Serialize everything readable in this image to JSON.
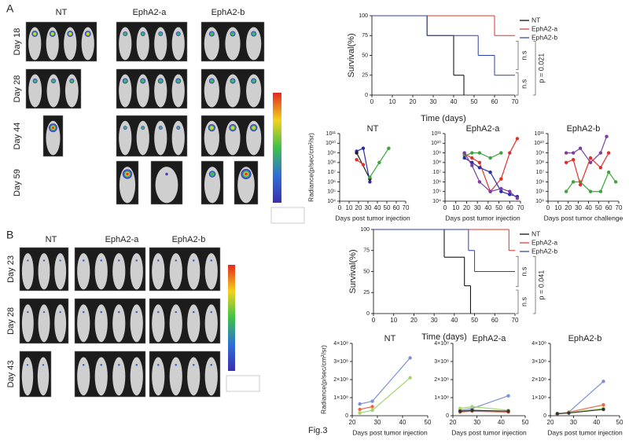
{
  "figure_label": "Fig.3",
  "panel_a": {
    "label": "A",
    "groups": [
      "NT",
      "EphA2-a",
      "EphA2-b"
    ],
    "days": [
      "Day 18",
      "Day 28",
      "Day 44",
      "Day 59"
    ],
    "survival": {
      "type": "step",
      "ylabel": "Survival(%)",
      "xlabel": "Time (days)",
      "xlim": [
        0,
        70
      ],
      "xticks": [
        0,
        10,
        20,
        30,
        40,
        50,
        60,
        70
      ],
      "ylim": [
        0,
        100
      ],
      "yticks": [
        0,
        25,
        50,
        75,
        100
      ],
      "legend": "upper right",
      "series": [
        {
          "name": "NT",
          "color": "#000000",
          "x": [
            0,
            27,
            40,
            45
          ],
          "values": [
            100,
            75,
            25,
            0
          ]
        },
        {
          "name": "EphA2-a",
          "color": "#e0302a",
          "x": [
            0,
            60,
            70
          ],
          "values": [
            100,
            75,
            75
          ]
        },
        {
          "name": "EphA2-b",
          "color": "#2b3fa6",
          "x": [
            0,
            27,
            52,
            60,
            70
          ],
          "values": [
            100,
            75,
            50,
            25,
            25
          ]
        }
      ],
      "annotations": [
        "n.s",
        "n.s",
        "p = 0.021"
      ]
    },
    "radiance": [
      {
        "type": "line",
        "title": "NT",
        "ylabel": "Radiance(p/sec/cm²/sr)",
        "xlabel": "Days post  tumor  injection",
        "log_y": true,
        "xlim": [
          0,
          70
        ],
        "xticks": [
          0,
          10,
          20,
          30,
          40,
          50,
          60,
          70
        ],
        "ylim": [
          10000,
          100000000000
        ],
        "yticks": [
          {
            "value": 10000,
            "label": "10⁴"
          },
          {
            "value": 100000,
            "label": "10⁵"
          },
          {
            "value": 1000000,
            "label": "10⁶"
          },
          {
            "value": 10000000,
            "label": "10⁷"
          },
          {
            "value": 100000000,
            "label": "10⁸"
          },
          {
            "value": 1000000000,
            "label": "10⁹"
          },
          {
            "value": 10000000000,
            "label": "10¹⁰"
          },
          {
            "value": 100000000000,
            "label": "10¹¹"
          }
        ],
        "series": [
          {
            "color": "#2c2ca8",
            "x": [
              18,
              25,
              32
            ],
            "values": [
              1500000000,
              3000000000,
              1000000
            ]
          },
          {
            "color": "#222222",
            "x": [
              18,
              32
            ],
            "values": [
              1000000000,
              2000000
            ]
          },
          {
            "color": "#e0302a",
            "x": [
              18,
              25
            ],
            "values": [
              200000000,
              60000000
            ]
          },
          {
            "color": "#3aa53a",
            "x": [
              32,
              42,
              52
            ],
            "values": [
              3000000,
              100000000,
              3000000000
            ]
          }
        ]
      },
      {
        "type": "line",
        "title": "EphA2-a",
        "xlabel": "Days post  tumor  injection",
        "log_y": true,
        "xlim": [
          0,
          70
        ],
        "xticks": [
          0,
          10,
          20,
          30,
          40,
          50,
          60,
          70
        ],
        "ylim": [
          10000,
          100000000000
        ],
        "yticks": [
          {
            "value": 10000,
            "label": "10⁴"
          },
          {
            "value": 100000,
            "label": "10⁵"
          },
          {
            "value": 1000000,
            "label": "10⁶"
          },
          {
            "value": 10000000,
            "label": "10⁷"
          },
          {
            "value": 100000000,
            "label": "10⁸"
          },
          {
            "value": 1000000000,
            "label": "10⁹"
          },
          {
            "value": 10000000000,
            "label": "10¹⁰"
          },
          {
            "value": 100000000000,
            "label": "10¹¹"
          }
        ],
        "series": [
          {
            "color": "#e0302a",
            "x": [
              18,
              25,
              32,
              42,
              52,
              60,
              67
            ],
            "values": [
              800000000,
              300000000,
              100000000,
              100000,
              2000000,
              1000000000,
              30000000000
            ]
          },
          {
            "color": "#3aa53a",
            "x": [
              18,
              25,
              32,
              42,
              52
            ],
            "values": [
              500000000,
              1000000000,
              1000000000,
              300000000,
              1000000000
            ]
          },
          {
            "color": "#2c2ca8",
            "x": [
              18,
              25,
              32,
              42,
              52,
              60,
              67
            ],
            "values": [
              300000000,
              100000000,
              30000000,
              10000000,
              100000,
              50000,
              30000
            ]
          },
          {
            "color": "#7b3fa0",
            "x": [
              18,
              25,
              32,
              42,
              52,
              60,
              67
            ],
            "values": [
              1000000000,
              50000000,
              1000000,
              100000,
              200000,
              100000,
              20000
            ]
          }
        ]
      },
      {
        "type": "line",
        "title": "EphA2-b",
        "xlabel": "Days post tumor challenge",
        "log_y": true,
        "xlim": [
          0,
          70
        ],
        "xticks": [
          0,
          10,
          20,
          30,
          40,
          50,
          60,
          70
        ],
        "ylim": [
          10000,
          100000000000
        ],
        "yticks": [
          {
            "value": 10000,
            "label": "10⁴"
          },
          {
            "value": 100000,
            "label": "10⁵"
          },
          {
            "value": 1000000,
            "label": "10⁶"
          },
          {
            "value": 10000000,
            "label": "10⁷"
          },
          {
            "value": 100000000,
            "label": "10⁸"
          },
          {
            "value": 1000000000,
            "label": "10⁹"
          },
          {
            "value": 10000000000,
            "label": "10¹⁰"
          },
          {
            "value": 100000000000,
            "label": "10¹¹"
          }
        ],
        "series": [
          {
            "color": "#7b3fa0",
            "x": [
              18,
              25,
              32,
              42,
              52,
              58
            ],
            "values": [
              1000000000,
              1000000000,
              3000000000,
              100000000,
              1000000000,
              50000000000
            ]
          },
          {
            "color": "#3aa53a",
            "x": [
              18,
              25,
              32,
              42,
              52,
              60,
              67
            ],
            "values": [
              100000,
              1000000,
              1000000,
              100000,
              100000,
              10000000,
              1000000
            ]
          },
          {
            "color": "#e0302a",
            "x": [
              18,
              25,
              32,
              42,
              52,
              60
            ],
            "values": [
              100000000,
              200000000,
              500000,
              300000000,
              30000000,
              1000000000
            ]
          }
        ]
      }
    ]
  },
  "panel_b": {
    "label": "B",
    "groups": [
      "NT",
      "EphA2-a",
      "EphA2-b"
    ],
    "days": [
      "Day 23",
      "Day 28",
      "Day 43"
    ],
    "survival": {
      "type": "step",
      "ylabel": "Survival(%)",
      "xlabel": "Time (days)",
      "xlim": [
        0,
        70
      ],
      "xticks": [
        0,
        10,
        20,
        30,
        40,
        50,
        60,
        70
      ],
      "ylim": [
        0,
        100
      ],
      "yticks": [
        0,
        25,
        50,
        75,
        100
      ],
      "legend": "upper right",
      "series": [
        {
          "name": "NT",
          "color": "#000000",
          "x": [
            0,
            35,
            45,
            48
          ],
          "values": [
            100,
            67,
            33,
            0
          ]
        },
        {
          "name": "EphA2-a",
          "color": "#e0302a",
          "x": [
            0,
            67,
            70
          ],
          "values": [
            100,
            75,
            75
          ]
        },
        {
          "name": "EphA2-b",
          "color": "#2b3fa6",
          "x": [
            0,
            47,
            50,
            70
          ],
          "values": [
            100,
            75,
            50,
            50
          ]
        }
      ],
      "annotations": [
        "n.s",
        "n.s",
        "p = 0.041"
      ]
    },
    "radiance": [
      {
        "type": "line",
        "title": "NT",
        "ylabel": "Radiance(p/sec/cm²/sr)",
        "xlabel": "Days post tumor injection",
        "xlim": [
          20,
          50
        ],
        "xticks": [
          20,
          30,
          40,
          50
        ],
        "ylim": [
          0,
          400000000
        ],
        "yticks": [
          0,
          {
            "value": 100000000,
            "label": "1×10⁸"
          },
          {
            "value": 200000000,
            "label": "2×10⁸"
          },
          {
            "value": 300000000,
            "label": "3×10⁸"
          },
          {
            "value": 400000000,
            "label": "4×10⁸"
          }
        ],
        "series": [
          {
            "color": "#7d8fd6",
            "x": [
              23,
              28,
              43
            ],
            "values": [
              65000000,
              80000000,
              320000000
            ]
          },
          {
            "color": "#e8694a",
            "x": [
              23,
              28
            ],
            "values": [
              35000000,
              50000000
            ]
          },
          {
            "color": "#a6d36a",
            "x": [
              23,
              28,
              43
            ],
            "values": [
              15000000,
              30000000,
              210000000
            ]
          }
        ]
      },
      {
        "type": "line",
        "title": "EphA2-a",
        "xlabel": "Days post tumor injection",
        "xlim": [
          20,
          50
        ],
        "xticks": [
          20,
          30,
          40,
          50
        ],
        "ylim": [
          0,
          400000000
        ],
        "yticks": [
          0,
          {
            "value": 100000000,
            "label": "1×10⁸"
          },
          {
            "value": 200000000,
            "label": "2×10⁸"
          },
          {
            "value": 300000000,
            "label": "3×10⁸"
          },
          {
            "value": 400000000,
            "label": "4×10⁸"
          }
        ],
        "series": [
          {
            "color": "#7d8fd6",
            "x": [
              23,
              28,
              43
            ],
            "values": [
              30000000,
              40000000,
              110000000
            ]
          },
          {
            "color": "#a6d36a",
            "x": [
              23,
              28,
              43
            ],
            "values": [
              40000000,
              50000000,
              30000000
            ]
          },
          {
            "color": "#e8694a",
            "x": [
              23,
              28,
              43
            ],
            "values": [
              20000000,
              25000000,
              20000000
            ]
          },
          {
            "color": "#333333",
            "x": [
              23,
              28,
              43
            ],
            "values": [
              25000000,
              30000000,
              25000000
            ]
          }
        ]
      },
      {
        "type": "line",
        "title": "EphA2-b",
        "xlabel": "Days post tumor injection",
        "xlim": [
          20,
          50
        ],
        "xticks": [
          20,
          30,
          40,
          50
        ],
        "ylim": [
          0,
          400000000
        ],
        "yticks": [
          0,
          {
            "value": 100000000,
            "label": "1×10⁸"
          },
          {
            "value": 200000000,
            "label": "2×10⁸"
          },
          {
            "value": 300000000,
            "label": "3×10⁸"
          },
          {
            "value": 400000000,
            "label": "4×10⁸"
          }
        ],
        "series": [
          {
            "color": "#7d8fd6",
            "x": [
              23,
              28,
              43
            ],
            "values": [
              10000000,
              20000000,
              190000000
            ]
          },
          {
            "color": "#e8694a",
            "x": [
              23,
              28,
              43
            ],
            "values": [
              10000000,
              20000000,
              60000000
            ]
          },
          {
            "color": "#a6d36a",
            "x": [
              23,
              28,
              43
            ],
            "values": [
              12000000,
              18000000,
              40000000
            ]
          },
          {
            "color": "#333333",
            "x": [
              23,
              28,
              43
            ],
            "values": [
              11000000,
              15000000,
              35000000
            ]
          }
        ]
      }
    ]
  }
}
